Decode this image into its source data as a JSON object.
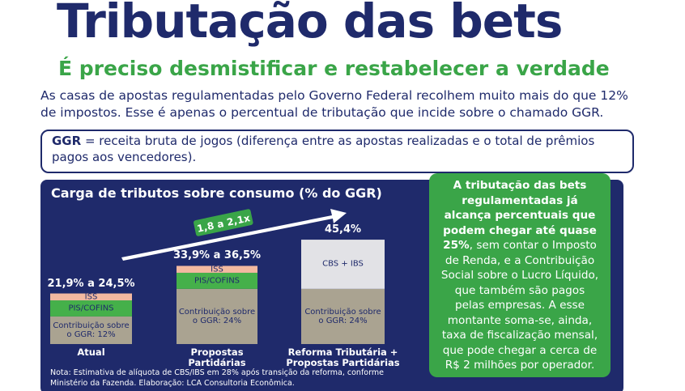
{
  "header": {
    "title": "Tributação das bets",
    "subtitle": "É preciso desmistificar e restabelecer a verdade"
  },
  "intro": "As casas de apostas regulamentadas pelo Governo Federal recolhem muito mais do que 12% de impostos. Esse é apenas o percentual de tributação que incide sobre o chamado GGR.",
  "definition": {
    "term": "GGR",
    "text": "= receita bruta de jogos (diferença entre as apostas realizadas e o total de prêmios pagos aos vencedores)."
  },
  "callout": {
    "bold": "A tributação das bets regulamentadas já alcança percentuais que podem chegar até quase 25%",
    "text": ", sem contar o Imposto de Renda, e a Contribuição Social sobre o Lucro Líquido, que também são pagos pelas empresas. A esse montante soma-se, ainda, taxa de fiscalização mensal, que pode chegar a cerca de R$ 2 milhões por operador."
  },
  "footnote": "Nota: Estimativa de alíquota de CBS/IBS em 28% após transição da reforma, conforme Ministério da Fazenda. Elaboração: LCA Consultoria Econômica.",
  "chart_data": {
    "type": "stacked-bar",
    "title": "Carga de tributos sobre consumo (% do GGR)",
    "categories": [
      "Atual",
      "Propostas Partidárias",
      "Reforma Tributária + Propostas Partidárias"
    ],
    "total_labels": [
      "21,9% a 24,5%",
      "33,9% a 36,5%",
      "45,4%"
    ],
    "annotation": "1,8 a 2,1x",
    "ylim": [
      0,
      50
    ],
    "series": [
      {
        "color": "#aaa391",
        "values": [
          12,
          24,
          24
        ],
        "value_labels": [
          "Contribuição sobre o GGR: 12%",
          "Contribuição sobre o GGR: 24%",
          "Contribuição sobre o GGR: 24%"
        ]
      },
      {
        "name": "PIS/COFINS",
        "color": "#45b04a",
        "values": [
          7,
          7,
          null
        ]
      },
      {
        "name": "ISS",
        "color": "#f3b9a0",
        "values": [
          3,
          3,
          null
        ]
      },
      {
        "name": "CBS + IBS",
        "color": "#e2e2e6",
        "values": [
          null,
          null,
          21.4
        ]
      }
    ]
  }
}
